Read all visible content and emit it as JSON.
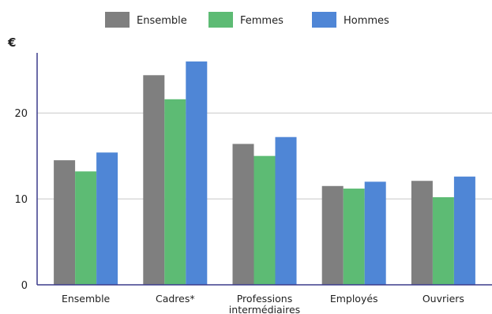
{
  "chart_data": {
    "type": "bar",
    "unit": "€",
    "categories": [
      [
        "Ensemble"
      ],
      [
        "Cadres*"
      ],
      [
        "Professions",
        "intermédiaires"
      ],
      [
        "Employés"
      ],
      [
        "Ouvriers"
      ]
    ],
    "series": [
      {
        "name": "Ensemble",
        "color": "#7f7f7f",
        "values": [
          14.5,
          24.4,
          16.4,
          11.5,
          12.1
        ]
      },
      {
        "name": "Femmes",
        "color": "#5dbb74",
        "values": [
          13.2,
          21.6,
          15.0,
          11.2,
          10.2
        ]
      },
      {
        "name": "Hommes",
        "color": "#4f86d6",
        "values": [
          15.4,
          26.0,
          17.2,
          12.0,
          12.6
        ]
      }
    ],
    "yticks": [
      0,
      10,
      20
    ],
    "ylim": [
      0,
      27
    ],
    "grid": true,
    "legend_position": "top"
  }
}
